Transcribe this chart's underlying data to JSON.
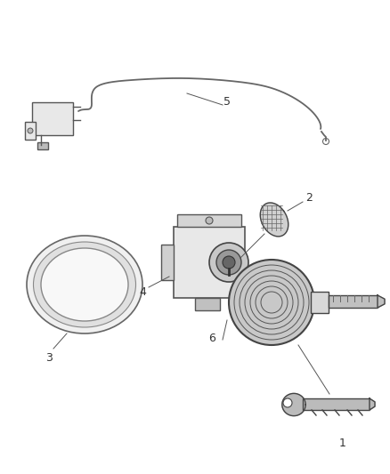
{
  "background_color": "#ffffff",
  "line_color": "#555555",
  "line_width": 1.0,
  "font_size": 9,
  "parts": [
    {
      "id": 1,
      "label": "1"
    },
    {
      "id": 2,
      "label": "2"
    },
    {
      "id": 3,
      "label": "3"
    },
    {
      "id": 4,
      "label": "4"
    },
    {
      "id": 5,
      "label": "5"
    },
    {
      "id": 6,
      "label": "6"
    }
  ],
  "wire_color": "#666666",
  "part_fill": "#e8e8e8",
  "dark_fill": "#888888",
  "mid_fill": "#bbbbbb"
}
